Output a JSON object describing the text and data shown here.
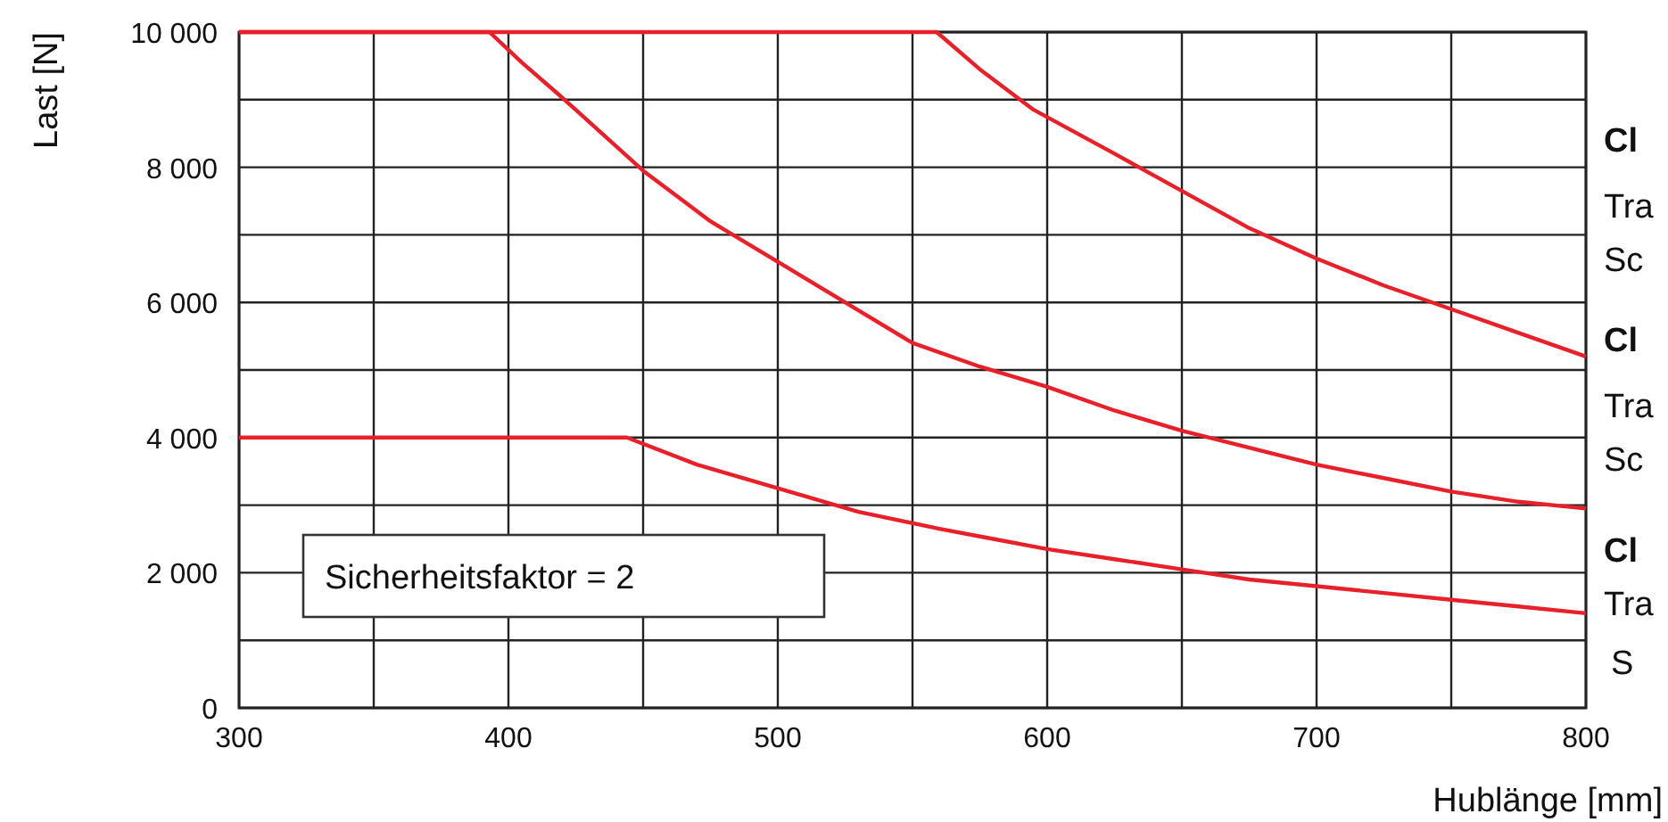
{
  "chart_data": {
    "type": "line",
    "xlabel": "Hublänge [mm]",
    "ylabel": "Last [N]",
    "xlim": [
      300,
      800
    ],
    "ylim": [
      0,
      10000
    ],
    "xticks": [
      300,
      {
        "value": 350,
        "label": null
      },
      400,
      {
        "value": 450,
        "label": null
      },
      500,
      {
        "value": 550,
        "label": null
      },
      600,
      {
        "value": 650,
        "label": null
      },
      700,
      {
        "value": 750,
        "label": null
      },
      800
    ],
    "yticks": [
      0,
      {
        "value": 1000,
        "label": null
      },
      {
        "value": 2000,
        "label": "2 000"
      },
      {
        "value": 3000,
        "label": null
      },
      {
        "value": 4000,
        "label": "4 000"
      },
      {
        "value": 5000,
        "label": null
      },
      {
        "value": 6000,
        "label": "6 000"
      },
      {
        "value": 7000,
        "label": null
      },
      {
        "value": 8000,
        "label": "8 000"
      },
      {
        "value": 9000,
        "label": null
      },
      {
        "value": 10000,
        "label": "10 000"
      }
    ],
    "grid": true,
    "marker": "none",
    "line_style": "solid",
    "series": [
      {
        "color": "#e8202a",
        "x": [
          300,
          559,
          575,
          595,
          625,
          650,
          675,
          700,
          725,
          750,
          775,
          800
        ],
        "values": [
          10000,
          10000,
          9450,
          8850,
          8200,
          7650,
          7100,
          6650,
          6250,
          5900,
          5550,
          5200
        ]
      },
      {
        "color": "#e8202a",
        "x": [
          300,
          393,
          405,
          418,
          425,
          450,
          475,
          500,
          525,
          550,
          575,
          600,
          625,
          650,
          675,
          700,
          725,
          750,
          775,
          800
        ],
        "values": [
          10000,
          10000,
          9550,
          9100,
          8850,
          7950,
          7200,
          6600,
          6000,
          5400,
          5050,
          4750,
          4400,
          4100,
          3850,
          3600,
          3400,
          3200,
          3050,
          2950
        ]
      },
      {
        "color": "#e8202a",
        "x": [
          300,
          444,
          470,
          500,
          530,
          560,
          580,
          600,
          625,
          650,
          675,
          700,
          725,
          750,
          775,
          800
        ],
        "values": [
          4000,
          4000,
          3600,
          3250,
          2900,
          2650,
          2500,
          2350,
          2200,
          2050,
          1900,
          1800,
          1700,
          1600,
          1500,
          1400
        ]
      }
    ],
    "annotations": [
      "Sicherheitsfaktor = 2",
      "Cl",
      "Tra",
      "Sc",
      "Cl",
      "Tra",
      "Sc",
      "Cl",
      "Tra",
      "S"
    ]
  }
}
